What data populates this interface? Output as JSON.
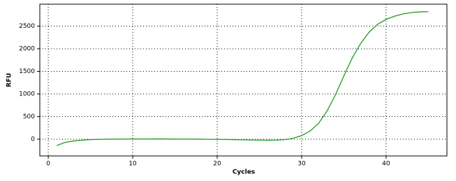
{
  "chart_data": {
    "type": "line",
    "x_label": "Cycles",
    "y_label": "RFU",
    "x": [
      1,
      2,
      3,
      4,
      5,
      6,
      7,
      8,
      9,
      10,
      11,
      12,
      13,
      14,
      15,
      16,
      17,
      18,
      19,
      20,
      21,
      22,
      23,
      24,
      25,
      26,
      27,
      28,
      29,
      30,
      31,
      32,
      33,
      34,
      35,
      36,
      37,
      38,
      39,
      40,
      41,
      42,
      43,
      44,
      45
    ],
    "series": [
      {
        "color": "#1e9a1e",
        "values": [
          -140,
          -70,
          -40,
          -20,
          -10,
          -5,
          0,
          2,
          3,
          5,
          5,
          5,
          6,
          5,
          4,
          3,
          2,
          0,
          -2,
          -4,
          -6,
          -10,
          -14,
          -18,
          -20,
          -22,
          -20,
          -10,
          20,
          80,
          180,
          350,
          620,
          980,
          1400,
          1800,
          2120,
          2370,
          2540,
          2650,
          2720,
          2770,
          2800,
          2815,
          2820
        ]
      }
    ],
    "xlim": [
      -1,
      47.2
    ],
    "ylim": [
      -370,
      2985
    ],
    "xticks": [
      0,
      10,
      20,
      30,
      40
    ],
    "yticks": [
      0,
      500,
      1000,
      1500,
      2000,
      2500
    ],
    "grid": true
  }
}
